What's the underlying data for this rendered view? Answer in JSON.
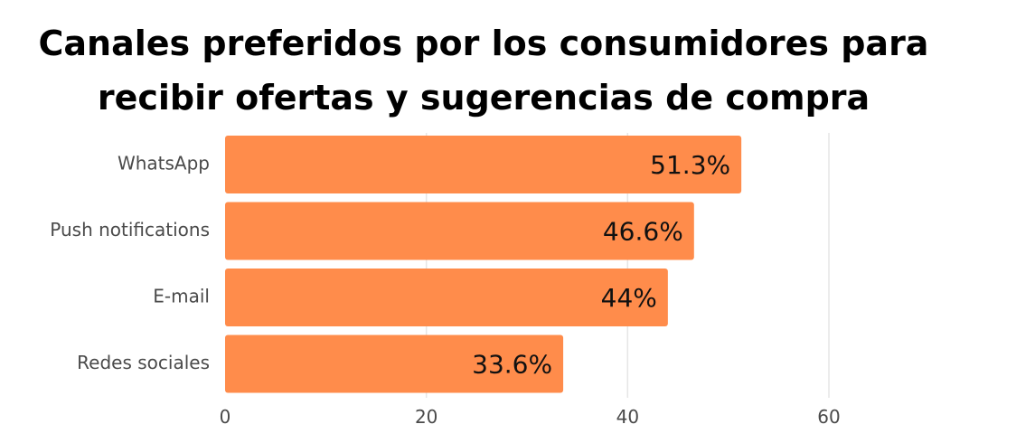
{
  "chart_data": {
    "type": "bar",
    "orientation": "horizontal",
    "title": "Canales preferidos por los consumidores para recibir ofertas y sugerencias de compra",
    "categories": [
      "WhatsApp",
      "Push notifications",
      "E-mail",
      "Redes sociales"
    ],
    "values": [
      51.3,
      46.6,
      44,
      33.6
    ],
    "data_labels": [
      "51.3%",
      "46.6%",
      "44%",
      "33.6%"
    ],
    "xlim": [
      0,
      60
    ],
    "x_ticks": [
      0,
      20,
      40,
      60
    ],
    "x_tick_labels": [
      "0",
      "20",
      "40",
      "60"
    ],
    "xlabel": "",
    "ylabel": "",
    "grid": true,
    "legend": "none",
    "colors": {
      "bar": "#FF8C4B",
      "grid": "#E6E6E6",
      "label": "#4A4A4A",
      "value": "#111111"
    }
  }
}
